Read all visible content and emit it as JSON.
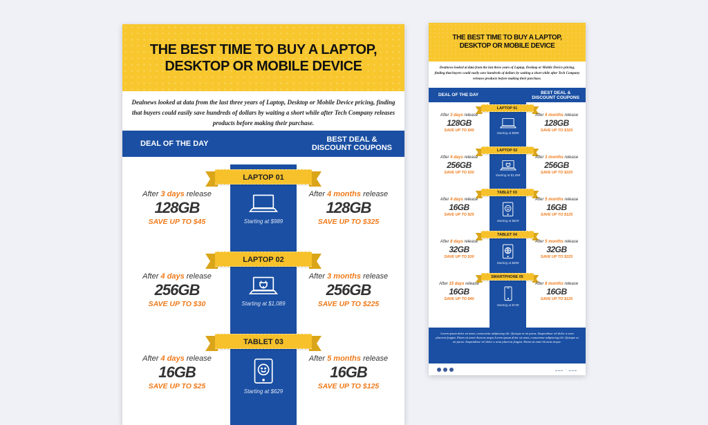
{
  "big": {
    "title_line1": "THE BEST TIME TO BUY A LAPTOP,",
    "title_line2": "DESKTOP OR MOBILE DEVICE",
    "intro": "Dealnews looked at data from the last three years of Laptop, Desktop or Mobile Device pricing, finding that buyers could easily save hundreds of dollars by waiting a short while after Tech Company releases products before making their purchase.",
    "left_header": "DEAL OF THE DAY",
    "right_header_line1": "BEST DEAL &",
    "right_header_line2": "DISCOUNT COUPONS",
    "items": [
      {
        "ribbon": "LAPTOP 01",
        "icon": "laptop-icon",
        "l_num": "3 days",
        "l_cap": "128GB",
        "l_save": "SAVE UP TO $45",
        "start": "Starting at $989",
        "r_num": "4 months",
        "r_cap": "128GB",
        "r_save": "SAVE UP TO $325"
      },
      {
        "ribbon": "LAPTOP 02",
        "icon": "laptop-plug-icon",
        "l_num": "4 days",
        "l_cap": "256GB",
        "l_save": "SAVE UP TO $30",
        "start": "Starting at $1,089",
        "r_num": "3 months",
        "r_cap": "256GB",
        "r_save": "SAVE UP TO $225"
      },
      {
        "ribbon": "TABLET 03",
        "icon": "tablet-smile-icon",
        "l_num": "4 days",
        "l_cap": "16GB",
        "l_save": "SAVE UP TO $25",
        "start": "Starting at $629",
        "r_num": "5 months",
        "r_cap": "16GB",
        "r_save": "SAVE UP TO $125"
      }
    ],
    "after_word": "After",
    "release_word": "release"
  },
  "small": {
    "title_line1": "THE BEST TIME TO BUY A LAPTOP,",
    "title_line2": "DESKTOP OR MOBILE DEVICE",
    "intro": "Dealnews looked at data from the last three years of Laptop, Desktop or Mobile Device pricing, finding that buyers could easily save hundreds of dollars by waiting a short while after Tech Company releases products before making their purchase.",
    "left_header": "DEAL OF THE DAY",
    "right_header_line1": "BEST DEAL &",
    "right_header_line2": "DISCOUNT COUPONS",
    "items": [
      {
        "ribbon": "LAPTOP 01",
        "icon": "laptop-icon",
        "l_num": "3 days",
        "l_cap": "128GB",
        "l_save": "SAVE UP TO $45",
        "start": "Starting at $989",
        "r_num": "4 months",
        "r_cap": "128GB",
        "r_save": "SAVE UP TO $325"
      },
      {
        "ribbon": "LAPTOP 02",
        "icon": "laptop-plug-icon",
        "l_num": "4 days",
        "l_cap": "256GB",
        "l_save": "SAVE UP TO $30",
        "start": "Starting at $1,089",
        "r_num": "3 months",
        "r_cap": "256GB",
        "r_save": "SAVE UP TO $225"
      },
      {
        "ribbon": "TABLET 03",
        "icon": "tablet-smile-icon",
        "l_num": "4 days",
        "l_cap": "16GB",
        "l_save": "SAVE UP TO $25",
        "start": "Starting at $629",
        "r_num": "5 months",
        "r_cap": "16GB",
        "r_save": "SAVE UP TO $125"
      },
      {
        "ribbon": "TABLET 04",
        "icon": "tablet-globe-icon",
        "l_num": "8 days",
        "l_cap": "32GB",
        "l_save": "SAVE UP TO $30",
        "start": "Starting at $699",
        "r_num": "5 months",
        "r_cap": "32GB",
        "r_save": "SAVE UP TO $225"
      },
      {
        "ribbon": "SMARTPHONE 05",
        "icon": "smartphone-icon",
        "l_num": "15 days",
        "l_cap": "16GB",
        "l_save": "SAVE UP TO $40",
        "start": "Starting at $749",
        "r_num": "8 months",
        "r_cap": "16GB",
        "r_save": "SAVE UP TO $125"
      }
    ],
    "after_word": "After",
    "release_word": "release",
    "footer_text": "Lorem ipsum dolor sit amet, consectetur adipiscing elit. Quisque ut mi purus. Suspendisse vel dolor a urna placerat feugiat. Etiam sit amet rhoncus neque.Lorem ipsum dolor sit amet, consectetur adipiscing elit. Quisque ut mi purus. Suspendisse vel dolor a urna placerat feugiat. Etiam sit amet rhoncus neque."
  },
  "colors": {
    "yellow": "#f8c72e",
    "blue": "#1a4fa3",
    "orange": "#f07a1a"
  }
}
